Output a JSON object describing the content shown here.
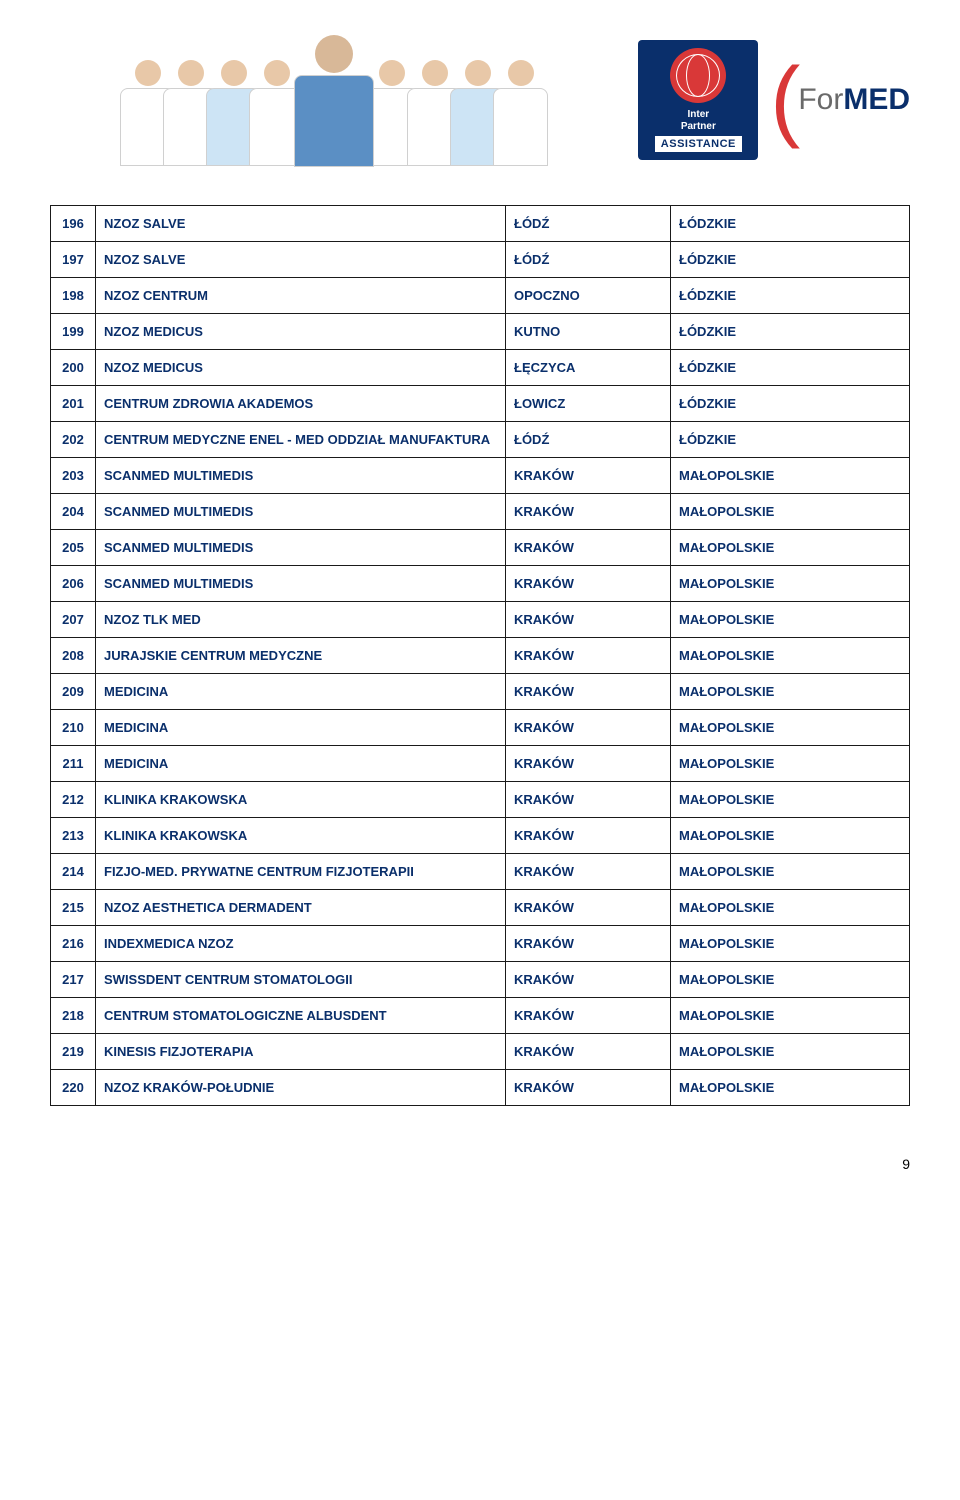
{
  "header": {
    "ipa_line1": "Inter",
    "ipa_line2": "Partner",
    "ipa_assist": "ASSISTANCE",
    "formed_for": "For",
    "formed_med": "MED"
  },
  "doctors": [
    {
      "head": "#e8c8a8",
      "body": "#ffffff"
    },
    {
      "head": "#e8c8a8",
      "body": "#ffffff"
    },
    {
      "head": "#e8c8a8",
      "body": "#cde4f5"
    },
    {
      "head": "#e8c8a8",
      "body": "#ffffff"
    },
    {
      "head": "#d8b898",
      "body": "#5b8fc4",
      "center": true
    },
    {
      "head": "#e8c8a8",
      "body": "#ffffff"
    },
    {
      "head": "#e8c8a8",
      "body": "#ffffff"
    },
    {
      "head": "#e8c8a8",
      "body": "#cde4f5"
    },
    {
      "head": "#e8c8a8",
      "body": "#ffffff"
    }
  ],
  "rows": [
    {
      "n": "196",
      "name": "NZOZ SALVE",
      "city": "ŁÓDŹ",
      "region": "ŁÓDZKIE"
    },
    {
      "n": "197",
      "name": "NZOZ SALVE",
      "city": "ŁÓDŹ",
      "region": "ŁÓDZKIE"
    },
    {
      "n": "198",
      "name": "NZOZ CENTRUM",
      "city": "OPOCZNO",
      "region": "ŁÓDZKIE"
    },
    {
      "n": "199",
      "name": "NZOZ MEDICUS",
      "city": "KUTNO",
      "region": "ŁÓDZKIE"
    },
    {
      "n": "200",
      "name": "NZOZ MEDICUS",
      "city": "ŁĘCZYCA",
      "region": "ŁÓDZKIE"
    },
    {
      "n": "201",
      "name": "CENTRUM ZDROWIA AKADEMOS",
      "city": "ŁOWICZ",
      "region": "ŁÓDZKIE"
    },
    {
      "n": "202",
      "name": "CENTRUM MEDYCZNE ENEL - MED ODDZIAŁ MANUFAKTURA",
      "city": "ŁÓDŹ",
      "region": "ŁÓDZKIE"
    },
    {
      "n": "203",
      "name": "SCANMED MULTIMEDIS",
      "city": "KRAKÓW",
      "region": "MAŁOPOLSKIE"
    },
    {
      "n": "204",
      "name": "SCANMED MULTIMEDIS",
      "city": "KRAKÓW",
      "region": "MAŁOPOLSKIE"
    },
    {
      "n": "205",
      "name": "SCANMED MULTIMEDIS",
      "city": "KRAKÓW",
      "region": "MAŁOPOLSKIE"
    },
    {
      "n": "206",
      "name": "SCANMED MULTIMEDIS",
      "city": "KRAKÓW",
      "region": "MAŁOPOLSKIE"
    },
    {
      "n": "207",
      "name": "NZOZ TLK MED",
      "city": "KRAKÓW",
      "region": "MAŁOPOLSKIE"
    },
    {
      "n": "208",
      "name": "JURAJSKIE CENTRUM MEDYCZNE",
      "city": "KRAKÓW",
      "region": "MAŁOPOLSKIE"
    },
    {
      "n": "209",
      "name": "MEDICINA",
      "city": "KRAKÓW",
      "region": "MAŁOPOLSKIE"
    },
    {
      "n": "210",
      "name": "MEDICINA",
      "city": "KRAKÓW",
      "region": "MAŁOPOLSKIE"
    },
    {
      "n": "211",
      "name": "MEDICINA",
      "city": "KRAKÓW",
      "region": "MAŁOPOLSKIE"
    },
    {
      "n": "212",
      "name": "KLINIKA KRAKOWSKA",
      "city": "KRAKÓW",
      "region": "MAŁOPOLSKIE"
    },
    {
      "n": "213",
      "name": "KLINIKA KRAKOWSKA",
      "city": "KRAKÓW",
      "region": "MAŁOPOLSKIE"
    },
    {
      "n": "214",
      "name": "FIZJO-MED. PRYWATNE CENTRUM FIZJOTERAPII",
      "city": "KRAKÓW",
      "region": "MAŁOPOLSKIE"
    },
    {
      "n": "215",
      "name": "NZOZ AESTHETICA DERMADENT",
      "city": "KRAKÓW",
      "region": "MAŁOPOLSKIE"
    },
    {
      "n": "216",
      "name": "INDEXMEDICA NZOZ",
      "city": "KRAKÓW",
      "region": "MAŁOPOLSKIE"
    },
    {
      "n": "217",
      "name": "SWISSDENT CENTRUM STOMATOLOGII",
      "city": "KRAKÓW",
      "region": "MAŁOPOLSKIE"
    },
    {
      "n": "218",
      "name": "CENTRUM STOMATOLOGICZNE ALBUSDENT",
      "city": "KRAKÓW",
      "region": "MAŁOPOLSKIE"
    },
    {
      "n": "219",
      "name": "KINESIS FIZJOTERAPIA",
      "city": "KRAKÓW",
      "region": "MAŁOPOLSKIE"
    },
    {
      "n": "220",
      "name": "NZOZ KRAKÓW-POŁUDNIE",
      "city": "KRAKÓW",
      "region": "MAŁOPOLSKIE"
    }
  ],
  "page_number": "9",
  "style": {
    "text_color": "#0a2f6b",
    "border_color": "#1a1a1a",
    "font_size_cell": 13,
    "cell_font_weight": "bold"
  }
}
